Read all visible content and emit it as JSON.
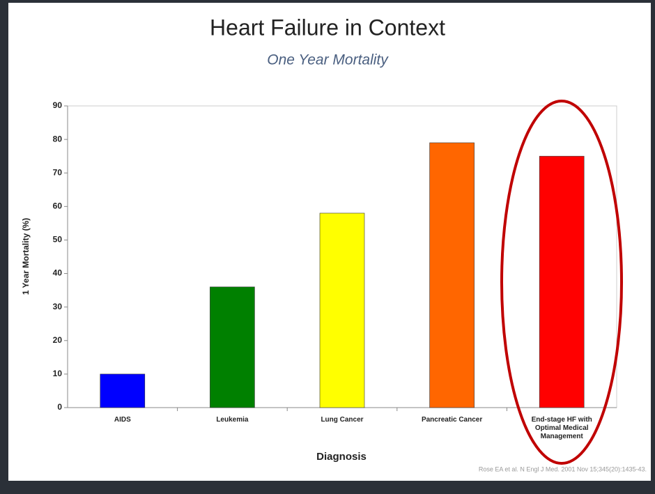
{
  "chart_data": {
    "type": "bar",
    "title": "Heart Failure in Context",
    "subtitle": "One Year Mortality",
    "x_label": "Diagnosis",
    "y_label": "1 Year Mortality (%)",
    "categories": [
      "AIDS",
      "Leukemia",
      "Lung Cancer",
      "Pancreatic Cancer",
      "End-stage HF with Optimal Medical Management"
    ],
    "values": [
      10,
      36,
      58,
      79,
      75
    ],
    "colors": [
      "#0000ff",
      "#008000",
      "#ffff00",
      "#ff6600",
      "#ff0000"
    ],
    "ylim": [
      0,
      90
    ],
    "yticks": [
      0,
      10,
      20,
      30,
      40,
      50,
      60,
      70,
      80,
      90
    ],
    "grid": false,
    "source": "Rose EA et al. N Engl J Med. 2001 Nov 15;345(20):1435-43."
  }
}
